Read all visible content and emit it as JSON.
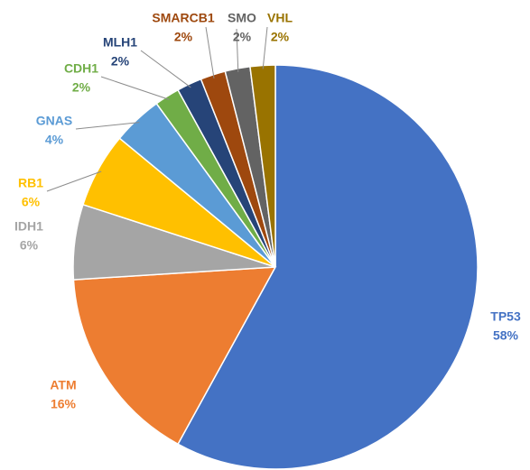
{
  "chart_data": {
    "type": "pie",
    "categories": [
      "TP53",
      "ATM",
      "IDH1",
      "RB1",
      "GNAS",
      "CDH1",
      "MLH1",
      "SMARCB1",
      "SMO",
      "VHL"
    ],
    "values": [
      58,
      16,
      6,
      6,
      4,
      2,
      2,
      2,
      2,
      2
    ],
    "value_labels": [
      "58%",
      "16%",
      "6%",
      "6%",
      "4%",
      "2%",
      "2%",
      "2%",
      "2%",
      "2%"
    ],
    "colors": [
      "#4472c4",
      "#ed7d31",
      "#a5a5a5",
      "#ffc000",
      "#5b9bd5",
      "#70ad47",
      "#264478",
      "#9e480e",
      "#636363",
      "#997300"
    ]
  }
}
